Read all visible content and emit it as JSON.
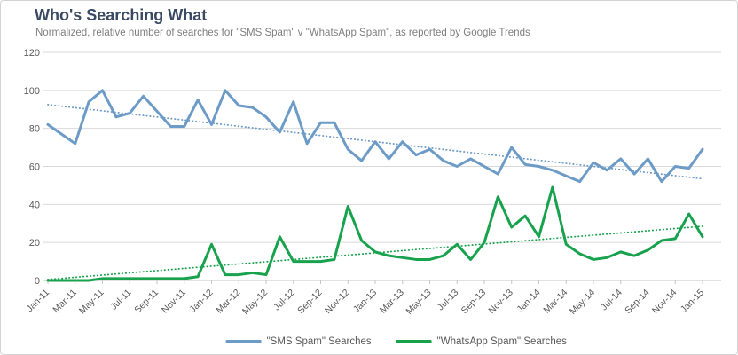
{
  "chart_data": {
    "type": "line",
    "title": "Who's Searching What",
    "subtitle": "Normalized, relative number of searches for \"SMS Spam\" v \"WhatsApp Spam\", as reported by Google Trends",
    "x": [
      "Jan-11",
      "Feb-11",
      "Mar-11",
      "Apr-11",
      "May-11",
      "Jun-11",
      "Jul-11",
      "Aug-11",
      "Sep-11",
      "Oct-11",
      "Nov-11",
      "Dec-11",
      "Jan-12",
      "Feb-12",
      "Mar-12",
      "Apr-12",
      "May-12",
      "Jun-12",
      "Jul-12",
      "Aug-12",
      "Sep-12",
      "Oct-12",
      "Nov-12",
      "Dec-12",
      "Jan-13",
      "Feb-13",
      "Mar-13",
      "Apr-13",
      "May-13",
      "Jun-13",
      "Jul-13",
      "Aug-13",
      "Sep-13",
      "Oct-13",
      "Nov-13",
      "Dec-13",
      "Jan-14",
      "Feb-14",
      "Mar-14",
      "Apr-14",
      "May-14",
      "Jun-14",
      "Jul-14",
      "Aug-14",
      "Sep-14",
      "Oct-14",
      "Nov-14",
      "Dec-14",
      "Jan-15"
    ],
    "x_tick_step": 2,
    "series": [
      {
        "name": "\"SMS Spam\" Searches",
        "color": "#6d9bc7",
        "values": [
          82,
          77,
          72,
          94,
          100,
          86,
          88,
          97,
          89,
          81,
          81,
          95,
          82,
          100,
          92,
          91,
          86,
          78,
          94,
          72,
          83,
          83,
          69,
          63,
          73,
          64,
          73,
          66,
          69,
          63,
          60,
          64,
          60,
          56,
          70,
          61,
          60,
          58,
          55,
          52,
          62,
          58,
          64,
          56,
          64,
          52,
          60,
          59,
          69
        ]
      },
      {
        "name": "\"WhatsApp Spam\" Searches",
        "color": "#18a24d",
        "values": [
          0,
          0,
          0,
          0,
          1,
          1,
          1,
          1,
          1,
          1,
          1,
          2,
          19,
          3,
          3,
          4,
          3,
          23,
          10,
          10,
          10,
          11,
          39,
          21,
          15,
          13,
          12,
          11,
          11,
          13,
          19,
          11,
          20,
          44,
          28,
          34,
          23,
          49,
          19,
          14,
          11,
          12,
          15,
          13,
          16,
          21,
          22,
          35,
          23
        ]
      }
    ],
    "trendlines": [
      {
        "series": "\"SMS Spam\" Searches",
        "start": 92.5,
        "end": 53.5,
        "style": "dotted"
      },
      {
        "series": "\"WhatsApp Spam\" Searches",
        "start": 0.5,
        "end": 28.5,
        "style": "dotted"
      }
    ],
    "ylim": [
      0,
      120
    ],
    "y_ticks": [
      0,
      20,
      40,
      60,
      80,
      100,
      120
    ],
    "grid": "horizontal",
    "legend_position": "bottom",
    "colors": {
      "title": "#3b4a63",
      "subtitle": "#7f7f7f",
      "axis_text": "#595959",
      "gridline": "#d9d9d9",
      "axis_line": "#c6c6c6"
    }
  }
}
